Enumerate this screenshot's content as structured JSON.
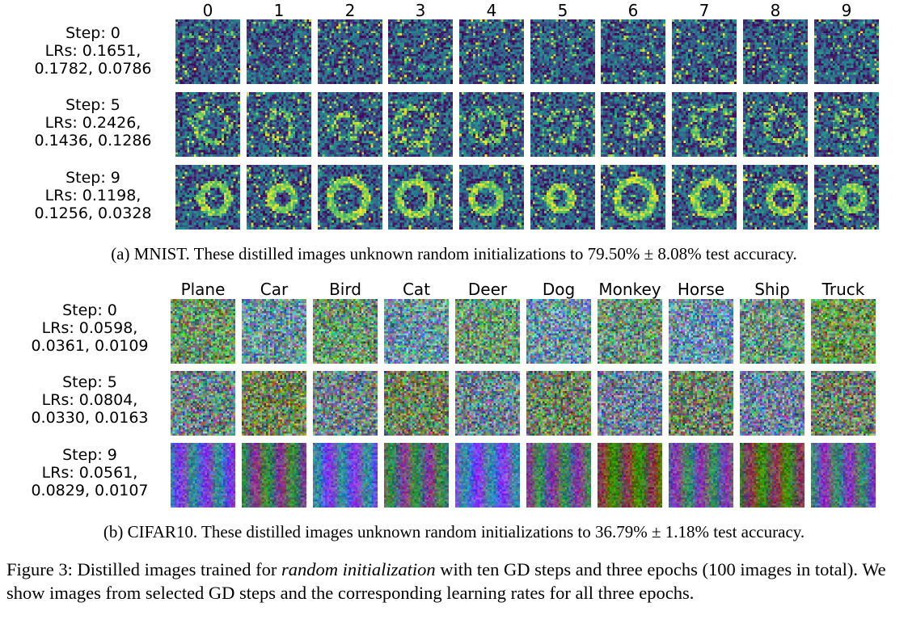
{
  "mnist": {
    "columns": [
      "0",
      "1",
      "2",
      "3",
      "4",
      "5",
      "6",
      "7",
      "8",
      "9"
    ],
    "rows": [
      {
        "step": "Step: 0",
        "lrs_line1": "LRs: 0.1651,",
        "lrs_line2": "0.1782, 0.0786"
      },
      {
        "step": "Step: 5",
        "lrs_line1": "LRs: 0.2426,",
        "lrs_line2": "0.1436, 0.1286"
      },
      {
        "step": "Step: 9",
        "lrs_line1": "LRs: 0.1198,",
        "lrs_line2": "0.1256, 0.0328"
      }
    ],
    "caption": "(a) MNIST. These distilled images unknown random initializations to 79.50% ± 8.08% test accuracy."
  },
  "cifar": {
    "columns": [
      "Plane",
      "Car",
      "Bird",
      "Cat",
      "Deer",
      "Dog",
      "Monkey",
      "Horse",
      "Ship",
      "Truck"
    ],
    "rows": [
      {
        "step": "Step: 0",
        "lrs_line1": "LRs: 0.0598,",
        "lrs_line2": "0.0361, 0.0109"
      },
      {
        "step": "Step: 5",
        "lrs_line1": "LRs: 0.0804,",
        "lrs_line2": "0.0330, 0.0163"
      },
      {
        "step": "Step: 9",
        "lrs_line1": "LRs: 0.0561,",
        "lrs_line2": "0.0829, 0.0107"
      }
    ],
    "caption": "(b) CIFAR10. These distilled images unknown random initializations to 36.79% ± 1.18% test accuracy."
  },
  "figure": {
    "label": "Figure 3:",
    "text_before": " Distilled images trained for ",
    "emphasis": "random initialization",
    "text_after": " with ten GD steps and three epochs (100 images in total). We show images from selected GD steps and the corresponding learning rates for all three epochs."
  },
  "palette": {
    "viridis_dark": "#440154",
    "viridis_mid": "#21918c",
    "viridis_bright": "#fde725"
  }
}
